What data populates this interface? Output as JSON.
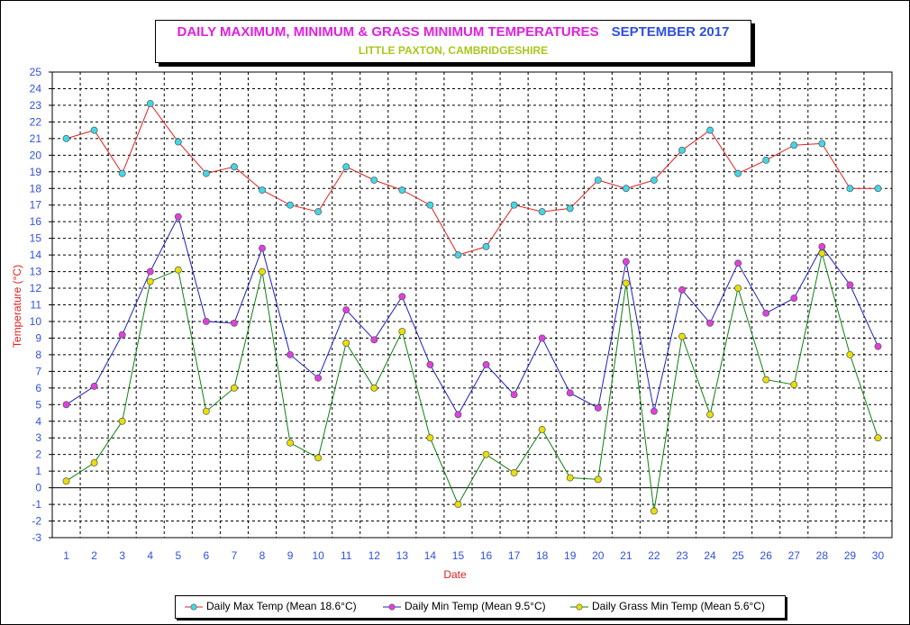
{
  "title": "DAILY MAXIMUM, MINIMUM & GRASS MINIMUM TEMPERATURES",
  "month": "SEPTEMBER 2017",
  "subtitle": "LITTLE PAXTON, CAMBRIDGESHIRE",
  "colors": {
    "title": "#e020e0",
    "month": "#3050e0",
    "subtitle": "#a8c81c",
    "axis_label": "#e02020",
    "tick": "#3050e0",
    "max_line": "#e02020",
    "max_marker": "#40d8e8",
    "min_line": "#2020c0",
    "min_marker": "#e040e0",
    "grass_line": "#108010",
    "grass_marker": "#e8e000"
  },
  "chart_data": {
    "type": "line",
    "xlabel": "Date",
    "ylabel": "Temperature (°C)",
    "ylim": [
      -3,
      25
    ],
    "yticks": [
      -3,
      -2,
      -1,
      0,
      1,
      2,
      3,
      4,
      5,
      6,
      7,
      8,
      9,
      10,
      11,
      12,
      13,
      14,
      15,
      16,
      17,
      18,
      19,
      20,
      21,
      22,
      23,
      24,
      25
    ],
    "x": [
      1,
      2,
      3,
      4,
      5,
      6,
      7,
      8,
      9,
      10,
      11,
      12,
      13,
      14,
      15,
      16,
      17,
      18,
      19,
      20,
      21,
      22,
      23,
      24,
      25,
      26,
      27,
      28,
      29,
      30
    ],
    "grid": true,
    "legend_position": "bottom",
    "series": [
      {
        "name": "Daily Max Temp (Mean 18.6°C)",
        "values": [
          21.0,
          21.5,
          18.9,
          23.1,
          20.8,
          18.9,
          19.3,
          17.9,
          17.0,
          16.6,
          19.3,
          18.5,
          17.9,
          17.0,
          14.0,
          14.5,
          17.0,
          16.6,
          16.8,
          18.5,
          18.0,
          18.5,
          20.3,
          21.5,
          18.9,
          19.7,
          20.6,
          20.7,
          18.0,
          18.0
        ]
      },
      {
        "name": "Daily Min Temp (Mean 9.5°C)",
        "values": [
          5.0,
          6.1,
          9.2,
          13.0,
          16.3,
          10.0,
          9.9,
          14.4,
          8.0,
          6.6,
          10.7,
          8.9,
          11.5,
          7.4,
          4.4,
          7.4,
          5.6,
          9.0,
          5.7,
          4.8,
          13.6,
          4.6,
          11.9,
          9.9,
          13.5,
          10.5,
          11.4,
          14.5,
          12.2,
          8.5
        ]
      },
      {
        "name": "Daily Grass Min Temp (Mean 5.6°C)",
        "values": [
          0.4,
          1.5,
          4.0,
          12.4,
          13.1,
          4.6,
          6.0,
          13.0,
          2.7,
          1.8,
          8.7,
          6.0,
          9.4,
          3.0,
          -1.0,
          2.0,
          0.9,
          3.5,
          0.6,
          0.5,
          12.3,
          -1.4,
          9.1,
          4.4,
          12.0,
          6.5,
          6.2,
          14.1,
          8.0,
          3.0
        ]
      }
    ]
  }
}
